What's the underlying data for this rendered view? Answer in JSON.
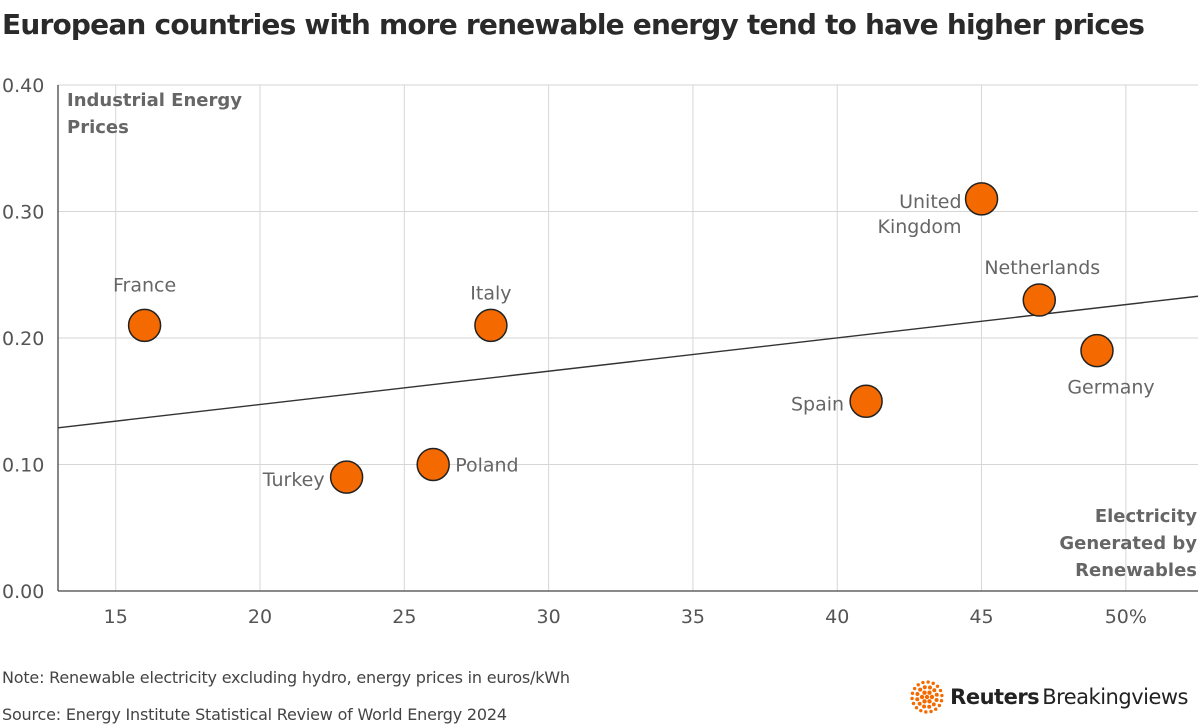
{
  "chart_data": {
    "type": "scatter",
    "title": "European countries with more renewable energy tend to have higher prices",
    "ylabel": "Industrial Energy Prices",
    "xlabel": "Electricity Generated by Renewables",
    "xlim": [
      13,
      52.5
    ],
    "ylim": [
      0,
      0.4
    ],
    "x_ticks": [
      {
        "value": 15,
        "label": "15"
      },
      {
        "value": 20,
        "label": "20"
      },
      {
        "value": 25,
        "label": "25"
      },
      {
        "value": 30,
        "label": "30"
      },
      {
        "value": 35,
        "label": "35"
      },
      {
        "value": 40,
        "label": "40"
      },
      {
        "value": 45,
        "label": "45"
      },
      {
        "value": 50,
        "label": "50%"
      }
    ],
    "y_ticks": [
      {
        "value": 0,
        "label": "0.00"
      },
      {
        "value": 0.1,
        "label": "0.10"
      },
      {
        "value": 0.2,
        "label": "0.20"
      },
      {
        "value": 0.3,
        "label": "0.30"
      },
      {
        "value": 0.4,
        "label": "0.40"
      }
    ],
    "grid": true,
    "points": [
      {
        "label": "France",
        "x": 16,
        "y": 0.21
      },
      {
        "label": "Turkey",
        "x": 23,
        "y": 0.09
      },
      {
        "label": "Poland",
        "x": 26,
        "y": 0.1
      },
      {
        "label": "Italy",
        "x": 28,
        "y": 0.21
      },
      {
        "label": "Spain",
        "x": 41,
        "y": 0.15
      },
      {
        "label": "United Kingdom",
        "x": 45,
        "y": 0.31
      },
      {
        "label": "Netherlands",
        "x": 47,
        "y": 0.23
      },
      {
        "label": "Germany",
        "x": 49,
        "y": 0.19
      }
    ],
    "trendline": {
      "x": [
        13,
        52.5
      ],
      "y": [
        0.129,
        0.233
      ]
    },
    "colors": {
      "point": "#f56a00",
      "point_stroke": "#222222",
      "trendline": "#333333",
      "grid": "#d6d6d6"
    }
  },
  "footer": {
    "note": "Note: Renewable electricity excluding hydro, energy prices in euros/kWh",
    "source": "Source: Energy Institute Statistical Review of World Energy 2024"
  },
  "logo": {
    "brand": "Reuters",
    "product": "Breakingviews",
    "icon": "reuters-dot-logo-icon"
  }
}
